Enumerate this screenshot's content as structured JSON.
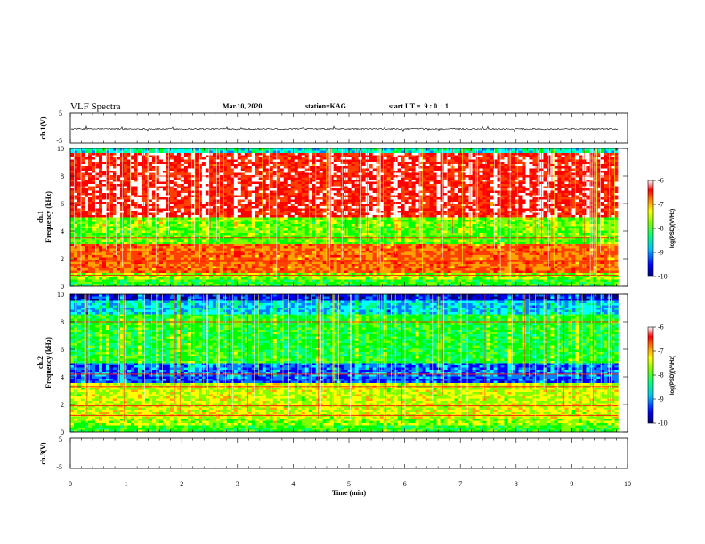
{
  "header": {
    "title": "VLF Spectra",
    "date": "Mar.10, 2020",
    "station": "station=KAG",
    "start": "start UT =  9 : 0  : 1"
  },
  "chart_data": [
    {
      "type": "line",
      "id": "ch1-waveform",
      "ylabel": "ch.1(V)",
      "ylim": [
        -5,
        5
      ],
      "yticks": [
        "5",
        "-5"
      ],
      "xlim": [
        0,
        10
      ],
      "x_data_end": 9.83,
      "baseline": -0.3,
      "line_color": "#000000"
    },
    {
      "type": "heatmap",
      "id": "ch1-spectrogram",
      "ylabel": "ch.1\nFrequency (kHz)",
      "yticks": [
        "0",
        "2",
        "4",
        "6",
        "8",
        "10"
      ],
      "ylim": [
        0,
        10
      ],
      "xlim": [
        0,
        10
      ],
      "x_data_end": 9.83,
      "colorbar": {
        "label": "log(PSD)(V²/Hz)",
        "ticks": [
          "-6",
          "-7",
          "-8",
          "-9",
          "-10"
        ],
        "range": [
          -10,
          -6
        ]
      },
      "features": {
        "strong_band_khz": [
          5,
          10
        ],
        "line_khz": [
          8.0,
          3.5,
          2.5,
          1.8,
          0.8
        ],
        "overall_level": "high"
      }
    },
    {
      "type": "heatmap",
      "id": "ch2-spectrogram",
      "ylabel": "ch.2\nFrequency (kHz)",
      "yticks": [
        "0",
        "2",
        "4",
        "6",
        "8",
        "10"
      ],
      "ylim": [
        0,
        10
      ],
      "xlim": [
        0,
        10
      ],
      "x_data_end": 9.83,
      "colorbar": {
        "label": "log(PSD)(V²/Hz)",
        "ticks": [
          "-6",
          "-7",
          "-8",
          "-9",
          "-10"
        ],
        "range": [
          -10,
          -6
        ]
      },
      "features": {
        "low_band_khz": [
          3.5,
          4.5
        ],
        "line_khz": [
          8.0,
          4.2,
          3.3,
          1.9,
          1.2
        ],
        "overall_level": "medium"
      }
    },
    {
      "type": "line",
      "id": "ch3-waveform",
      "ylabel": "ch.3(V)",
      "ylim": [
        -5,
        5
      ],
      "yticks": [
        "5",
        "-5"
      ],
      "xlim": [
        0,
        10
      ],
      "xticks": [
        "0",
        "1",
        "2",
        "3",
        "4",
        "5",
        "6",
        "7",
        "8",
        "9",
        "10"
      ],
      "xlabel": "Time (min)"
    }
  ],
  "colormap": [
    "#000080",
    "#0000ff",
    "#0080ff",
    "#00ffff",
    "#00ff80",
    "#00ff00",
    "#80ff00",
    "#ffff00",
    "#ffa000",
    "#ff4000",
    "#ff0000",
    "#ffffff"
  ]
}
